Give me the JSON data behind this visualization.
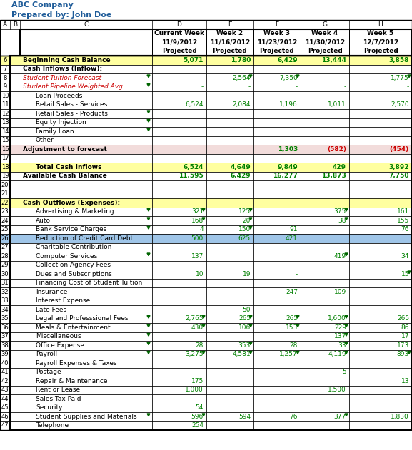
{
  "title_line1": "ABC Company",
  "title_line2": "Prepared by: John Doe",
  "weeks": [
    "Current Week\n11/9/2012\nProjected",
    "Week 2\n11/16/2012\nProjected",
    "Week 3\n11/23/2012\nProjected",
    "Week 4\n11/30/2012\nProjected",
    "Week 5\n12/7/2012\nProjected"
  ],
  "col_letters": [
    "A",
    "B",
    "C",
    "D",
    "E",
    "F",
    "G",
    "H"
  ],
  "rows": [
    {
      "row": 6,
      "label": "Beginning Cash Balance",
      "indent": 0,
      "bold": true,
      "italic": false,
      "red_label": false,
      "bg": "yellow",
      "tri_c": false,
      "vals": [
        "5,071",
        "1,780",
        "6,429",
        "13,444",
        "3,858"
      ],
      "val_tri": [
        false,
        false,
        false,
        false,
        false
      ]
    },
    {
      "row": 7,
      "label": "Cash Inflows (Inflow):",
      "indent": 0,
      "bold": true,
      "italic": false,
      "red_label": false,
      "bg": "white",
      "tri_c": false,
      "vals": [
        "",
        "",
        "",
        "",
        ""
      ],
      "val_tri": [
        false,
        false,
        false,
        false,
        false
      ]
    },
    {
      "row": 8,
      "label": "Student Tuition Forecast",
      "indent": 0,
      "bold": false,
      "italic": true,
      "red_label": true,
      "bg": "white",
      "tri_c": true,
      "vals": [
        "-",
        "2,564",
        "7,350",
        "-",
        "1,775"
      ],
      "val_tri": [
        false,
        true,
        true,
        false,
        true
      ]
    },
    {
      "row": 9,
      "label": "Student Pipeline Weighted Avg",
      "indent": 0,
      "bold": false,
      "italic": true,
      "red_label": true,
      "bg": "white",
      "tri_c": true,
      "vals": [
        "-",
        "-",
        "-",
        "-",
        "-"
      ],
      "val_tri": [
        false,
        false,
        false,
        false,
        false
      ]
    },
    {
      "row": 10,
      "label": "Loan Proceeds",
      "indent": 1,
      "bold": false,
      "italic": false,
      "red_label": false,
      "bg": "white",
      "tri_c": false,
      "vals": [
        "",
        "",
        "",
        "",
        ""
      ],
      "val_tri": [
        false,
        false,
        false,
        false,
        false
      ]
    },
    {
      "row": 11,
      "label": "Retail Sales - Services",
      "indent": 1,
      "bold": false,
      "italic": false,
      "red_label": false,
      "bg": "white",
      "tri_c": false,
      "vals": [
        "6,524",
        "2,084",
        "1,196",
        "1,011",
        "2,570"
      ],
      "val_tri": [
        false,
        false,
        false,
        false,
        false
      ]
    },
    {
      "row": 12,
      "label": "Retail Sales - Products",
      "indent": 1,
      "bold": false,
      "italic": false,
      "red_label": false,
      "bg": "white",
      "tri_c": true,
      "vals": [
        "",
        "",
        "",
        "",
        ""
      ],
      "val_tri": [
        false,
        false,
        false,
        false,
        false
      ]
    },
    {
      "row": 13,
      "label": "Equity Injection",
      "indent": 1,
      "bold": false,
      "italic": false,
      "red_label": false,
      "bg": "white",
      "tri_c": true,
      "vals": [
        "",
        "",
        "",
        "",
        ""
      ],
      "val_tri": [
        false,
        false,
        false,
        false,
        false
      ]
    },
    {
      "row": 14,
      "label": "Family Loan",
      "indent": 1,
      "bold": false,
      "italic": false,
      "red_label": false,
      "bg": "white",
      "tri_c": true,
      "vals": [
        "",
        "",
        "",
        "",
        ""
      ],
      "val_tri": [
        false,
        false,
        false,
        false,
        false
      ]
    },
    {
      "row": 15,
      "label": "Other",
      "indent": 1,
      "bold": false,
      "italic": false,
      "red_label": false,
      "bg": "white",
      "tri_c": false,
      "vals": [
        "",
        "",
        "",
        "",
        ""
      ],
      "val_tri": [
        false,
        false,
        false,
        false,
        false
      ]
    },
    {
      "row": 16,
      "label": "Adjustment to forecast",
      "indent": 0,
      "bold": true,
      "italic": false,
      "red_label": false,
      "bg": "pink",
      "tri_c": false,
      "vals": [
        "",
        "",
        "1,303",
        "(582)",
        "(454)"
      ],
      "val_tri": [
        false,
        false,
        false,
        false,
        false
      ]
    },
    {
      "row": 17,
      "label": "",
      "indent": 0,
      "bold": false,
      "italic": false,
      "red_label": false,
      "bg": "white",
      "tri_c": false,
      "vals": [
        "",
        "",
        "",
        "",
        ""
      ],
      "val_tri": [
        false,
        false,
        false,
        false,
        false
      ]
    },
    {
      "row": 18,
      "label": "Total Cash Inflows",
      "indent": 1,
      "bold": true,
      "italic": false,
      "red_label": false,
      "bg": "yellow",
      "tri_c": false,
      "vals": [
        "6,524",
        "4,649",
        "9,849",
        "429",
        "3,892"
      ],
      "val_tri": [
        false,
        false,
        false,
        false,
        false
      ]
    },
    {
      "row": 19,
      "label": "Available Cash Balance",
      "indent": 0,
      "bold": true,
      "italic": false,
      "red_label": false,
      "bg": "white",
      "tri_c": false,
      "vals": [
        "11,595",
        "6,429",
        "16,277",
        "13,873",
        "7,750"
      ],
      "val_tri": [
        false,
        false,
        false,
        false,
        false
      ]
    },
    {
      "row": 20,
      "label": "",
      "indent": 0,
      "bold": false,
      "italic": false,
      "red_label": false,
      "bg": "white",
      "tri_c": false,
      "vals": [
        "",
        "",
        "",
        "",
        ""
      ],
      "val_tri": [
        false,
        false,
        false,
        false,
        false
      ]
    },
    {
      "row": 21,
      "label": "",
      "indent": 0,
      "bold": false,
      "italic": false,
      "red_label": false,
      "bg": "white",
      "tri_c": false,
      "vals": [
        "",
        "",
        "",
        "",
        ""
      ],
      "val_tri": [
        false,
        false,
        false,
        false,
        false
      ]
    },
    {
      "row": 22,
      "label": "Cash Outflows (Expenses):",
      "indent": 0,
      "bold": true,
      "italic": false,
      "red_label": false,
      "bg": "yellow",
      "tri_c": false,
      "vals": [
        "",
        "",
        "",
        "",
        ""
      ],
      "val_tri": [
        false,
        false,
        false,
        false,
        false
      ]
    },
    {
      "row": 23,
      "label": "Advertising & Marketing",
      "indent": 1,
      "bold": false,
      "italic": false,
      "red_label": false,
      "bg": "white",
      "tri_c": true,
      "vals": [
        "321",
        "125",
        "",
        "375",
        "161"
      ],
      "val_tri": [
        true,
        true,
        false,
        true,
        false
      ]
    },
    {
      "row": 24,
      "label": "Auto",
      "indent": 1,
      "bold": false,
      "italic": false,
      "red_label": false,
      "bg": "white",
      "tri_c": true,
      "vals": [
        "168",
        "20",
        "",
        "38",
        "155"
      ],
      "val_tri": [
        true,
        true,
        false,
        true,
        false
      ]
    },
    {
      "row": 25,
      "label": "Bank Service Charges",
      "indent": 1,
      "bold": false,
      "italic": false,
      "red_label": false,
      "bg": "white",
      "tri_c": true,
      "vals": [
        "4",
        "150",
        "91",
        "",
        "76"
      ],
      "val_tri": [
        false,
        true,
        false,
        false,
        false
      ]
    },
    {
      "row": 26,
      "label": "Reduction of Credit Card Debt",
      "indent": 1,
      "bold": false,
      "italic": false,
      "red_label": false,
      "bg": "blue_hl",
      "tri_c": false,
      "vals": [
        "500",
        "625",
        "421",
        "",
        ""
      ],
      "val_tri": [
        false,
        false,
        false,
        false,
        false
      ]
    },
    {
      "row": 27,
      "label": "Charitable Contribution",
      "indent": 1,
      "bold": false,
      "italic": false,
      "red_label": false,
      "bg": "white",
      "tri_c": false,
      "vals": [
        "",
        "",
        "",
        "",
        ""
      ],
      "val_tri": [
        false,
        false,
        false,
        false,
        false
      ]
    },
    {
      "row": 28,
      "label": "Computer Services",
      "indent": 1,
      "bold": false,
      "italic": false,
      "red_label": false,
      "bg": "white",
      "tri_c": true,
      "vals": [
        "137",
        "",
        "",
        "419",
        "34"
      ],
      "val_tri": [
        false,
        false,
        false,
        true,
        false
      ]
    },
    {
      "row": 29,
      "label": "Collection Agency Fees",
      "indent": 1,
      "bold": false,
      "italic": false,
      "red_label": false,
      "bg": "white",
      "tri_c": false,
      "vals": [
        "",
        "",
        "",
        "",
        ""
      ],
      "val_tri": [
        false,
        false,
        false,
        false,
        false
      ]
    },
    {
      "row": 30,
      "label": "Dues and Subscriptions",
      "indent": 1,
      "bold": false,
      "italic": false,
      "red_label": false,
      "bg": "white",
      "tri_c": false,
      "vals": [
        "10",
        "19",
        "-",
        "",
        "15"
      ],
      "val_tri": [
        false,
        false,
        false,
        false,
        true
      ]
    },
    {
      "row": 31,
      "label": "Financing Cost of Student Tuition",
      "indent": 1,
      "bold": false,
      "italic": false,
      "red_label": false,
      "bg": "white",
      "tri_c": false,
      "vals": [
        "",
        "",
        "",
        "",
        ""
      ],
      "val_tri": [
        false,
        false,
        false,
        false,
        false
      ]
    },
    {
      "row": 32,
      "label": "Insurance",
      "indent": 1,
      "bold": false,
      "italic": false,
      "red_label": false,
      "bg": "white",
      "tri_c": false,
      "vals": [
        "",
        "",
        "247",
        "109",
        ""
      ],
      "val_tri": [
        false,
        false,
        false,
        false,
        false
      ]
    },
    {
      "row": 33,
      "label": "Interest Expense",
      "indent": 1,
      "bold": false,
      "italic": false,
      "red_label": false,
      "bg": "white",
      "tri_c": false,
      "vals": [
        "",
        "",
        "",
        "",
        ""
      ],
      "val_tri": [
        false,
        false,
        false,
        false,
        false
      ]
    },
    {
      "row": 34,
      "label": "Late Fees",
      "indent": 1,
      "bold": false,
      "italic": false,
      "red_label": false,
      "bg": "white",
      "tri_c": false,
      "vals": [
        "-",
        "50",
        "-",
        "-",
        "-"
      ],
      "val_tri": [
        false,
        false,
        false,
        false,
        false
      ]
    },
    {
      "row": 35,
      "label": "Legal and Professsional Fees",
      "indent": 1,
      "bold": false,
      "italic": false,
      "red_label": false,
      "bg": "white",
      "tri_c": true,
      "vals": [
        "2,765",
        "265",
        "265",
        "1,600",
        "265"
      ],
      "val_tri": [
        true,
        true,
        true,
        true,
        false
      ]
    },
    {
      "row": 36,
      "label": "Meals & Entertainment",
      "indent": 1,
      "bold": false,
      "italic": false,
      "red_label": false,
      "bg": "white",
      "tri_c": true,
      "vals": [
        "430",
        "106",
        "153",
        "229",
        "86"
      ],
      "val_tri": [
        true,
        true,
        true,
        true,
        false
      ]
    },
    {
      "row": 37,
      "label": "Miscellaneous",
      "indent": 1,
      "bold": false,
      "italic": false,
      "red_label": false,
      "bg": "white",
      "tri_c": true,
      "vals": [
        "",
        "",
        "",
        "137",
        "17"
      ],
      "val_tri": [
        false,
        false,
        false,
        true,
        false
      ]
    },
    {
      "row": 38,
      "label": "Office Expense",
      "indent": 1,
      "bold": false,
      "italic": false,
      "red_label": false,
      "bg": "white",
      "tri_c": true,
      "vals": [
        "28",
        "353",
        "28",
        "33",
        "173"
      ],
      "val_tri": [
        false,
        true,
        false,
        true,
        false
      ]
    },
    {
      "row": 39,
      "label": "Payroll",
      "indent": 1,
      "bold": false,
      "italic": false,
      "red_label": false,
      "bg": "white",
      "tri_c": true,
      "vals": [
        "3,275",
        "4,581",
        "1,257",
        "4,119",
        "893"
      ],
      "val_tri": [
        true,
        true,
        true,
        true,
        true
      ]
    },
    {
      "row": 40,
      "label": "Payroll Expenses & Taxes",
      "indent": 1,
      "bold": false,
      "italic": false,
      "red_label": false,
      "bg": "white",
      "tri_c": false,
      "vals": [
        "",
        "",
        "",
        "",
        ""
      ],
      "val_tri": [
        false,
        false,
        false,
        false,
        false
      ]
    },
    {
      "row": 41,
      "label": "Postage",
      "indent": 1,
      "bold": false,
      "italic": false,
      "red_label": false,
      "bg": "white",
      "tri_c": false,
      "vals": [
        "",
        "",
        "",
        "5",
        ""
      ],
      "val_tri": [
        false,
        false,
        false,
        false,
        false
      ]
    },
    {
      "row": 42,
      "label": "Repair & Maintenance",
      "indent": 1,
      "bold": false,
      "italic": false,
      "red_label": false,
      "bg": "white",
      "tri_c": false,
      "vals": [
        "175",
        "",
        "",
        "",
        "13"
      ],
      "val_tri": [
        false,
        false,
        false,
        false,
        false
      ]
    },
    {
      "row": 43,
      "label": "Rent or Lease",
      "indent": 1,
      "bold": false,
      "italic": false,
      "red_label": false,
      "bg": "white",
      "tri_c": false,
      "vals": [
        "1,000",
        "",
        "",
        "1,500",
        ""
      ],
      "val_tri": [
        false,
        false,
        false,
        false,
        false
      ]
    },
    {
      "row": 44,
      "label": "Sales Tax Paid",
      "indent": 1,
      "bold": false,
      "italic": false,
      "red_label": false,
      "bg": "white",
      "tri_c": false,
      "vals": [
        "",
        "",
        "",
        "",
        ""
      ],
      "val_tri": [
        false,
        false,
        false,
        false,
        false
      ]
    },
    {
      "row": 45,
      "label": "Security",
      "indent": 1,
      "bold": false,
      "italic": false,
      "red_label": false,
      "bg": "white",
      "tri_c": false,
      "vals": [
        "54",
        "",
        "",
        "",
        ""
      ],
      "val_tri": [
        false,
        false,
        false,
        false,
        false
      ]
    },
    {
      "row": 46,
      "label": "Student Supplies and Materials",
      "indent": 1,
      "bold": false,
      "italic": false,
      "red_label": false,
      "bg": "white",
      "tri_c": true,
      "vals": [
        "596",
        "594",
        "76",
        "377",
        "1,830"
      ],
      "val_tri": [
        true,
        false,
        false,
        true,
        false
      ]
    },
    {
      "row": 47,
      "label": "Telephone",
      "indent": 1,
      "bold": false,
      "italic": false,
      "red_label": false,
      "bg": "white",
      "tri_c": false,
      "vals": [
        "254",
        "",
        "",
        "",
        ""
      ],
      "val_tri": [
        false,
        false,
        false,
        false,
        false
      ]
    }
  ],
  "yellow": "#FFFFA0",
  "pink": "#F2DCDB",
  "blue_hl": "#9FC5E8",
  "green_text": "#008000",
  "red_text": "#CC0000",
  "blue_title": "#1F5C99",
  "black": "#000000",
  "white": "#FFFFFF",
  "gray_border": "#888888"
}
